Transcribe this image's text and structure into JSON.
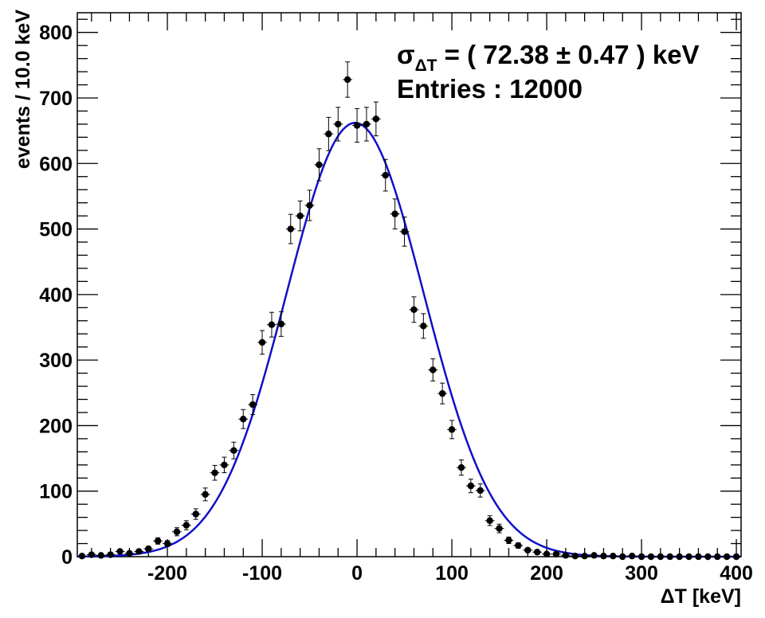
{
  "chart_data": {
    "type": "scatter",
    "xlabel": "ΔT [keV]",
    "ylabel": "events / 10.0 keV",
    "xlim": [
      -295,
      405
    ],
    "ylim": [
      0,
      830
    ],
    "xticks": [
      -200,
      -100,
      0,
      100,
      200,
      300,
      400
    ],
    "yticks": [
      0,
      100,
      200,
      300,
      400,
      500,
      600,
      700,
      800
    ],
    "x_tick_labels": [
      "-200",
      "-100",
      "0",
      "100",
      "200",
      "300",
      "400"
    ],
    "y_tick_labels": [
      "0",
      "100",
      "200",
      "300",
      "400",
      "500",
      "600",
      "700",
      "800"
    ],
    "grid": false,
    "bin_width": 10,
    "annotations": {
      "sigma_symbol": "σ",
      "sigma_subscript": "ΔT",
      "sigma_text": " = ( 72.38 ± 0.47 ) keV",
      "entries": "Entries : 12000"
    },
    "series": [
      {
        "type": "points_with_errors",
        "color": "#000000",
        "x": [
          -290,
          -280,
          -270,
          -260,
          -250,
          -240,
          -230,
          -220,
          -210,
          -200,
          -190,
          -180,
          -170,
          -160,
          -150,
          -140,
          -130,
          -120,
          -110,
          -100,
          -90,
          -80,
          -70,
          -60,
          -50,
          -40,
          -30,
          -20,
          -10,
          0,
          10,
          20,
          30,
          40,
          50,
          60,
          70,
          80,
          90,
          100,
          110,
          120,
          130,
          140,
          150,
          160,
          170,
          180,
          190,
          200,
          210,
          220,
          230,
          240,
          250,
          260,
          270,
          280,
          290,
          300,
          310,
          320,
          330,
          340,
          350,
          360,
          370,
          380,
          390,
          400
        ],
        "y": [
          1,
          3,
          2,
          3,
          8,
          5,
          8,
          12,
          24,
          20,
          38,
          48,
          65,
          95,
          128,
          140,
          162,
          210,
          232,
          327,
          354,
          355,
          500,
          520,
          536,
          598,
          645,
          660,
          728,
          658,
          660,
          668,
          582,
          523,
          496,
          377,
          352,
          285,
          249,
          194,
          136,
          108,
          101,
          55,
          43,
          25,
          17,
          10,
          7,
          4,
          4,
          2,
          1,
          1,
          2,
          1,
          1,
          0,
          1,
          0,
          0,
          0,
          0,
          0,
          0,
          0,
          0,
          0,
          0,
          0
        ]
      },
      {
        "type": "gaussian_fit",
        "color": "#1010c8",
        "amplitude": 662,
        "mean": -2,
        "sigma": 72.38
      }
    ]
  }
}
